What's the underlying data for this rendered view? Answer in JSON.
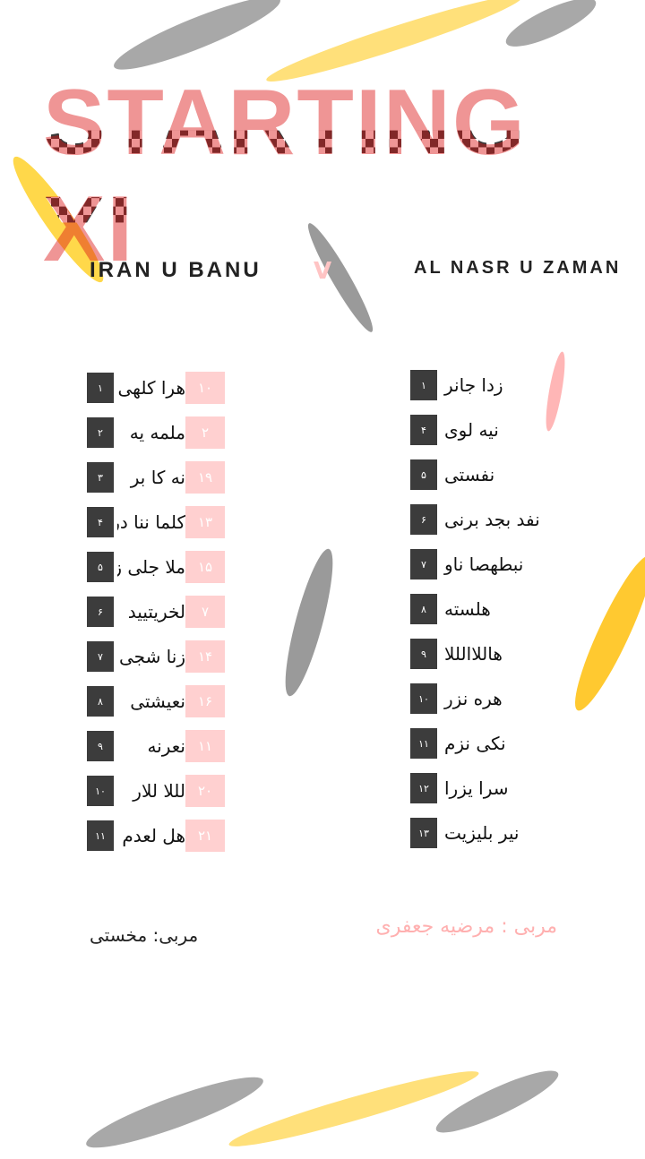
{
  "title": "STARTING XI",
  "vs": "V",
  "team_left": "IRAN U BANU",
  "team_right": "AL NASR U ZAMAN",
  "left_players": [
    {
      "num": "۱",
      "shirt": "۱۰",
      "name": "هرا کلهی"
    },
    {
      "num": "۲",
      "shirt": "۲",
      "name": "ملمه یه"
    },
    {
      "num": "۳",
      "shirt": "۱۹",
      "name": "نه کا بر"
    },
    {
      "num": "۴",
      "shirt": "۱۳",
      "name": "کلما ننا در"
    },
    {
      "num": "۵",
      "shirt": "۱۵",
      "name": "ملا جلی زار"
    },
    {
      "num": "۶",
      "shirt": "۷",
      "name": "لخریتیید"
    },
    {
      "num": "۷",
      "shirt": "۱۴",
      "name": "زنا شجی کبین"
    },
    {
      "num": "۸",
      "shirt": "۱۶",
      "name": "نعیشتی"
    },
    {
      "num": "۹",
      "shirt": "۱۱",
      "name": "نعرنه"
    },
    {
      "num": "۱۰",
      "shirt": "۲۰",
      "name": "لللا للار"
    },
    {
      "num": "۱۱",
      "shirt": "۲۱",
      "name": "هل لعدم"
    }
  ],
  "right_players": [
    {
      "num": "۱",
      "name": "زدا جانر"
    },
    {
      "num": "۴",
      "name": "نیه لوی"
    },
    {
      "num": "۵",
      "name": "نفستی"
    },
    {
      "num": "۶",
      "name": "نفد بجد برنی"
    },
    {
      "num": "۷",
      "name": "نبطهصا ناو"
    },
    {
      "num": "۸",
      "name": "هلسته"
    },
    {
      "num": "۹",
      "name": "هاللاالللا"
    },
    {
      "num": "۱۰",
      "name": "هره نزر"
    },
    {
      "num": "۱۱",
      "name": "نکی نزم"
    },
    {
      "num": "۱۲",
      "name": "سرا یزرا"
    },
    {
      "num": "۱۳",
      "name": "نیر بلیزیت"
    }
  ],
  "footer": {
    "coach": "مربی : مرضیه جعفری",
    "garbled": "مربی: مخستی"
  },
  "colors": {
    "red": "#d11010",
    "dark": "#3c3c3c",
    "pink": "#ffd0d0",
    "yellow": "#ffd84a",
    "gray": "#9a9a9a"
  }
}
